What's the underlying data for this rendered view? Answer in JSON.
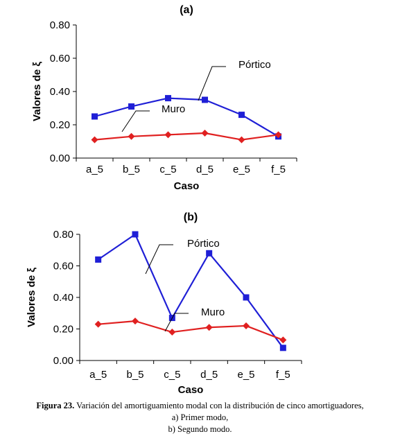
{
  "chart_data": [
    {
      "type": "line",
      "title": "(a)",
      "xlabel": "Caso",
      "ylabel": "Valores de ξ",
      "categories": [
        "a_5",
        "b_5",
        "c_5",
        "d_5",
        "e_5",
        "f_5"
      ],
      "ylim": [
        0,
        0.8
      ],
      "yticks": [
        "0.00",
        "0.20",
        "0.40",
        "0.60",
        "0.80"
      ],
      "grid": false,
      "series": [
        {
          "name": "Pórtico",
          "color": "#1f1fd6",
          "marker": "square",
          "values": [
            0.25,
            0.31,
            0.36,
            0.35,
            0.26,
            0.13
          ]
        },
        {
          "name": "Muro",
          "color": "#e02020",
          "marker": "diamond",
          "values": [
            0.11,
            0.13,
            0.14,
            0.15,
            0.11,
            0.14
          ]
        }
      ]
    },
    {
      "type": "line",
      "title": "(b)",
      "xlabel": "Caso",
      "ylabel": "Valores de ξ",
      "categories": [
        "a_5",
        "b_5",
        "c_5",
        "d_5",
        "e_5",
        "f_5"
      ],
      "ylim": [
        0,
        0.8
      ],
      "yticks": [
        "0.00",
        "0.20",
        "0.40",
        "0.60",
        "0.80"
      ],
      "grid": false,
      "series": [
        {
          "name": "Pórtico",
          "color": "#1f1fd6",
          "marker": "square",
          "values": [
            0.64,
            0.8,
            0.27,
            0.68,
            0.4,
            0.08
          ]
        },
        {
          "name": "Muro",
          "color": "#e02020",
          "marker": "diamond",
          "values": [
            0.23,
            0.25,
            0.18,
            0.21,
            0.22,
            0.13
          ]
        }
      ]
    }
  ],
  "caption": {
    "label": "Figura 23.",
    "line1": " Variación del amortiguamiento modal con la distribución de cinco amortiguadores,",
    "line2": "a) Primer modo,",
    "line3": "b) Segundo modo."
  }
}
